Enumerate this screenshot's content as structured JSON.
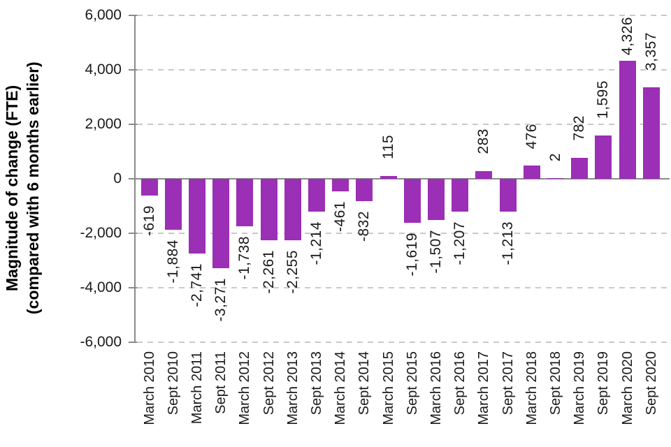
{
  "chart_data": {
    "type": "bar",
    "title": "",
    "ylabel_line1": "Magnitude of change (FTE)",
    "ylabel_line2": "(compared with 6 months earlier)",
    "xlabel": "",
    "categories": [
      "March 2010",
      "Sept 2010",
      "March 2011",
      "Sept 2011",
      "March 2012",
      "Sept 2012",
      "March 2013",
      "Sept 2013",
      "March 2014",
      "Sept 2014",
      "March 2015",
      "Sept 2015",
      "March 2016",
      "Sept 2016",
      "March 2017",
      "Sept 2017",
      "March 2018",
      "Sept 2018",
      "March 2019",
      "Sept 2019",
      "March 2020",
      "Sept 2020"
    ],
    "values": [
      -619,
      -1884,
      -2741,
      -3271,
      -1738,
      -2261,
      -2255,
      -1214,
      -461,
      -832,
      115,
      -1619,
      -1507,
      -1207,
      283,
      -1213,
      476,
      2,
      782,
      1595,
      4326,
      3357
    ],
    "value_labels": [
      "-619",
      "-1,884",
      "-2,741",
      "-3,271",
      "-1,738",
      "-2,261",
      "-2,255",
      "-1,214",
      "-461",
      "-832",
      "115",
      "-1,619",
      "-1,507",
      "-1,207",
      "283",
      "-1,213",
      "476",
      "2",
      "782",
      "1,595",
      "4,326",
      "3,357"
    ],
    "ylim": [
      -6000,
      6000
    ],
    "yticks": [
      6000,
      4000,
      2000,
      0,
      -2000,
      -4000,
      -6000
    ],
    "ytick_labels": [
      "6,000",
      "4,000",
      "2,000",
      "0",
      "-2,000",
      "-4,000",
      "-6,000"
    ],
    "grid": "horizontal-dashed",
    "legend": "none",
    "bar_color": "#9b2fb5",
    "grid_color": "#c9c9c9",
    "axis_color": "#8a8a8a",
    "text_color": "#1a1a1a"
  }
}
